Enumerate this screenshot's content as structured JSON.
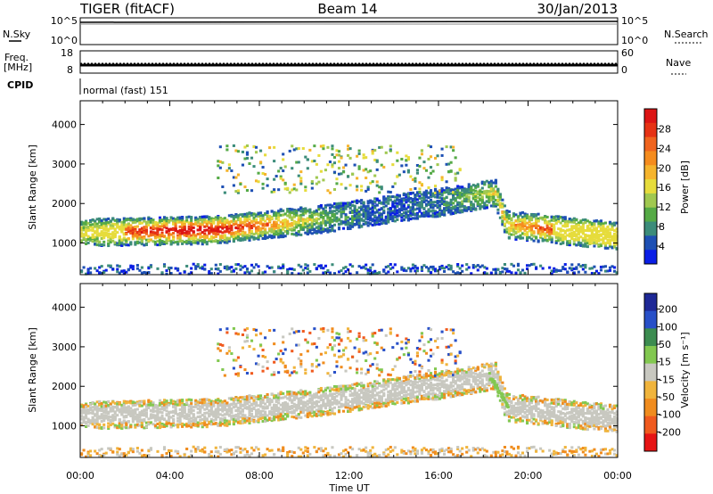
{
  "header": {
    "radar": "TIGER (fitACF)",
    "beam": "Beam 14",
    "date": "30/Jan/2013"
  },
  "strips": {
    "nsky_label": "N.Sky",
    "nsearch_label": "N.Search",
    "nsky_ticks": [
      "10^5",
      "10^0"
    ],
    "nsearch_ticks": [
      "10^5",
      "10^0"
    ],
    "freq_label_1": "Freq.",
    "freq_label_2": "[MHz]",
    "freq_ticks": [
      "18",
      "8"
    ],
    "nave_label": "Nave",
    "nave_ticks": [
      "60",
      "0"
    ],
    "cpid_label": "CPID",
    "cpid_value": "normal (fast) 151"
  },
  "chart_data": [
    {
      "type": "heatmap",
      "parameter": "Power",
      "ylabel": "Slant Range [km]",
      "ylim": [
        200,
        4600
      ],
      "yticks": [
        "1000",
        "2000",
        "3000",
        "4000"
      ],
      "colorbar_label": "Power [dB]",
      "colorbar_ticks": [
        "4",
        "8",
        "12",
        "16",
        "20",
        "24",
        "28"
      ],
      "colorbar_colors": [
        "#0a1ee6",
        "#1e50b4",
        "#3c8c7a",
        "#55aa46",
        "#a0c850",
        "#e6dc3c",
        "#f5b42d",
        "#f58c1e",
        "#f0641e",
        "#e63214",
        "#dc1414"
      ],
      "xlim_hours": [
        0,
        24
      ]
    },
    {
      "type": "heatmap",
      "parameter": "Velocity",
      "ylabel": "Slant Range [km]",
      "ylim": [
        200,
        4600
      ],
      "yticks": [
        "1000",
        "2000",
        "3000",
        "4000"
      ],
      "colorbar_label": "Velocity [m s⁻¹]",
      "colorbar_ticks": [
        "200",
        "100",
        "50",
        "15",
        "-15",
        "-50",
        "-100",
        "-200"
      ],
      "colorbar_colors": [
        "#1e2896",
        "#2850c8",
        "#3c8c50",
        "#82c850",
        "#c8c8c0",
        "#f0b43c",
        "#f08c1e",
        "#f05a1e",
        "#e61414"
      ],
      "xlim_hours": [
        0,
        24
      ]
    }
  ],
  "xaxis": {
    "ticks": [
      "00:00",
      "04:00",
      "08:00",
      "12:00",
      "16:00",
      "20:00",
      "00:00"
    ],
    "label": "Time UT"
  }
}
